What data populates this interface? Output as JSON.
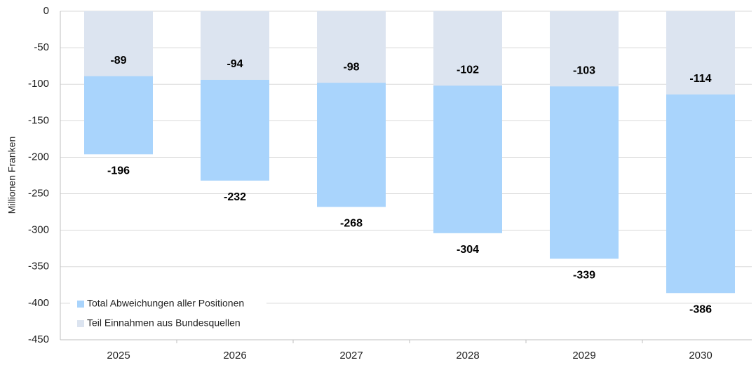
{
  "chart_data": {
    "type": "overlap_bar",
    "y_label": "Millionen Franken",
    "categories": [
      "2025",
      "2026",
      "2027",
      "2028",
      "2029",
      "2030"
    ],
    "series": [
      {
        "name": "Total Abweichungen aller Positionen",
        "color": "#a9d4fc",
        "values": [
          -196,
          -232,
          -268,
          -304,
          -339,
          -386
        ]
      },
      {
        "name": "Teil Einnahmen aus Bundesquellen",
        "color": "#dce4f0",
        "values": [
          -89,
          -94,
          -98,
          -102,
          -103,
          -114
        ]
      }
    ],
    "ylim": [
      -450,
      0
    ],
    "yticks": [
      0,
      -50,
      -100,
      -150,
      -200,
      -250,
      -300,
      -350,
      -400,
      -450
    ],
    "grid": true,
    "legend": "lower left"
  }
}
